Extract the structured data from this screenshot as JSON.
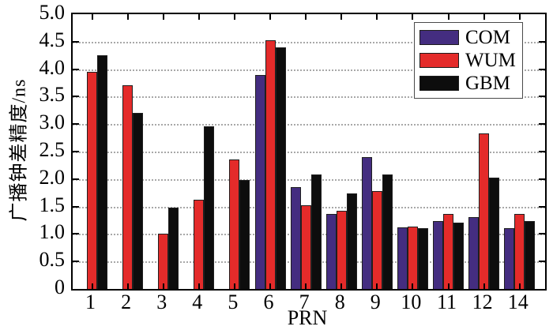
{
  "chart_data": {
    "type": "bar",
    "title": "",
    "xlabel": "PRN",
    "ylabel": "广播钟差精度/ns",
    "categories": [
      "1",
      "2",
      "3",
      "4",
      "5",
      "6",
      "7",
      "8",
      "9",
      "10",
      "11",
      "12",
      "14"
    ],
    "series": [
      {
        "name": "COM",
        "color": "#442d80",
        "values": [
          null,
          null,
          null,
          null,
          null,
          3.9,
          1.85,
          1.37,
          2.4,
          1.12,
          1.24,
          1.31,
          1.1
        ]
      },
      {
        "name": "WUM",
        "color": "#e42b2a",
        "values": [
          3.95,
          3.7,
          1.0,
          1.62,
          2.35,
          4.52,
          1.53,
          1.42,
          1.78,
          1.14,
          1.37,
          2.83,
          1.36
        ]
      },
      {
        "name": "GBM",
        "color": "#0d0d0d",
        "values": [
          4.25,
          3.2,
          1.48,
          2.96,
          1.98,
          4.4,
          2.08,
          1.74,
          2.08,
          1.1,
          1.2,
          2.03,
          1.23
        ]
      }
    ],
    "ylim": [
      0,
      5
    ],
    "ytick_step": 0.5,
    "ytick_labels": [
      "5.0",
      "4.5",
      "4.0",
      "3.5",
      "3.0",
      "2.5",
      "2.0",
      "1.5",
      "1.0",
      "0.5",
      "0"
    ],
    "grid": "horizontal-dotted",
    "legend_position": "top-right",
    "legend_items": [
      "COM",
      "WUM",
      "GBM"
    ]
  }
}
